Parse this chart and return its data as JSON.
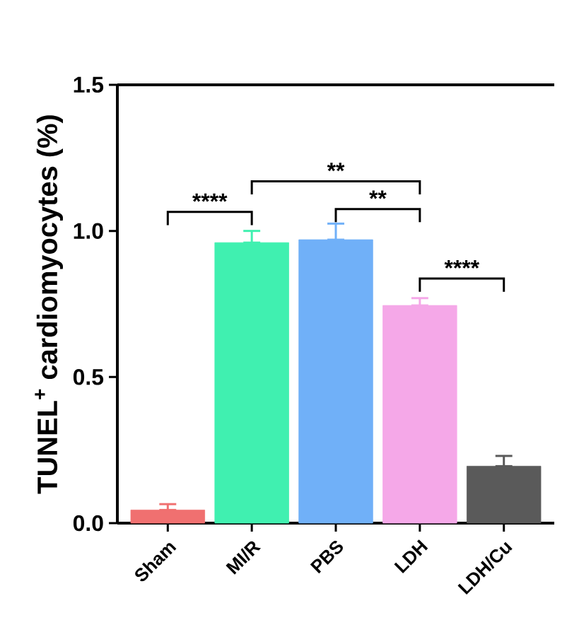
{
  "chart_data": {
    "type": "bar",
    "ylabel": "TUNEL$^{+}$ cardiomyocytes (%)",
    "categories": [
      "Sham",
      "MI/R",
      "PBS",
      "LDH",
      "LDH/Cu"
    ],
    "values": [
      0.045,
      0.96,
      0.97,
      0.745,
      0.195
    ],
    "errors": [
      [
        0.045,
        0.065
      ],
      [
        0.96,
        1.0
      ],
      [
        0.97,
        1.025
      ],
      [
        0.745,
        0.77
      ],
      [
        0.195,
        0.23
      ]
    ],
    "colors": [
      "#f07070",
      "#40f0b0",
      "#70b0f8",
      "#f5a8e8",
      "#5a5a5a"
    ],
    "ylim": [
      0,
      1.5
    ],
    "yticks": [
      {
        "value": 0,
        "label": "0.0"
      },
      {
        "value": 0.5,
        "label": "0.5"
      },
      {
        "value": 1.0,
        "label": "1.0"
      },
      {
        "value": 1.5,
        "label": "1.5"
      }
    ],
    "annotations": [
      "****",
      "**",
      "**",
      "****"
    ],
    "grid": false
  }
}
